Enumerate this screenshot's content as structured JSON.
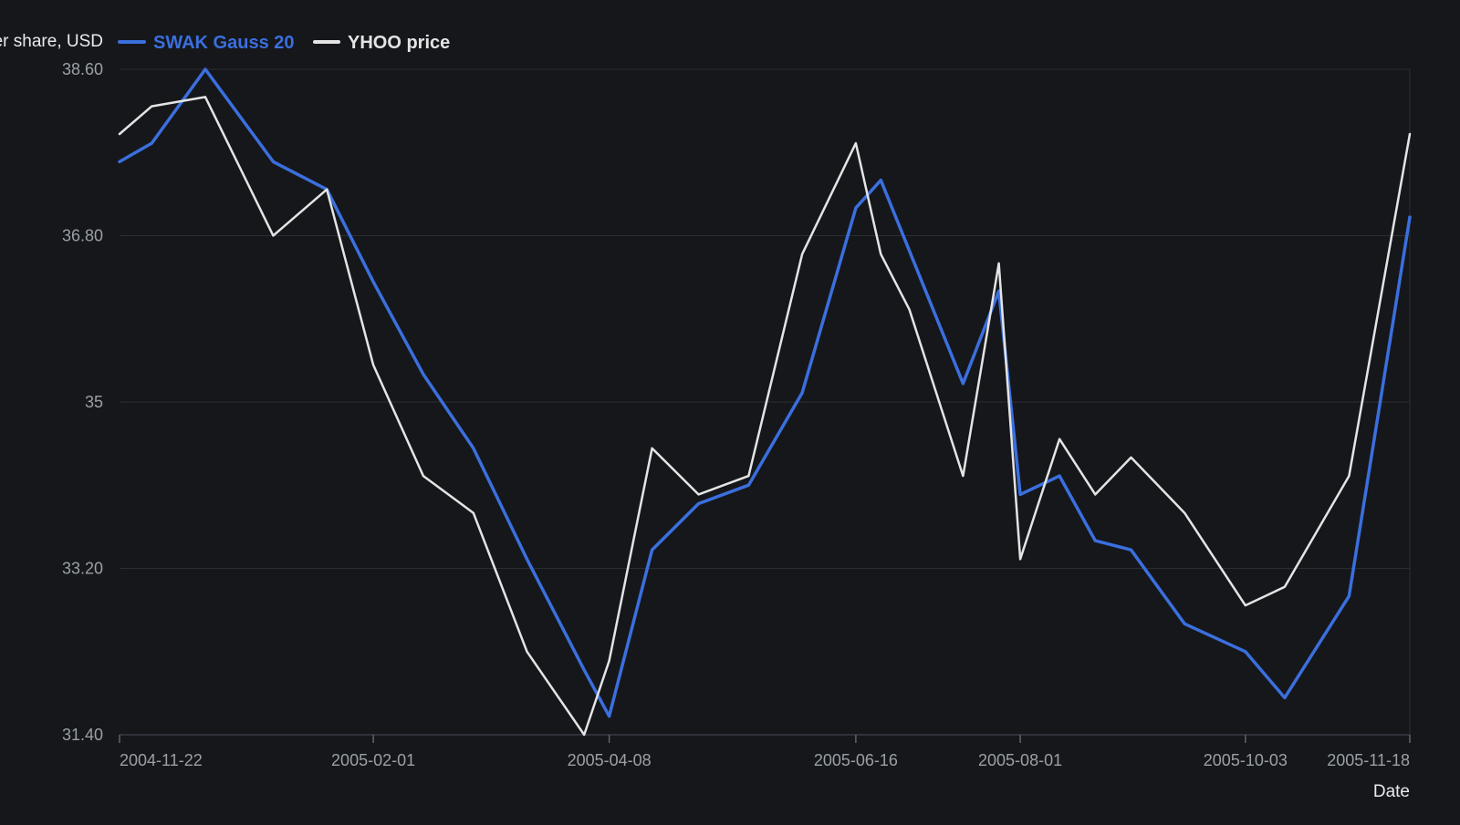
{
  "chart_data": {
    "type": "line",
    "title": "",
    "ylabel": "Price per share, USD",
    "xlabel": "Date",
    "ylim": [
      31.4,
      38.6
    ],
    "y_ticks": [
      31.4,
      33.2,
      35,
      36.8,
      38.6
    ],
    "y_tick_labels": [
      "31.40",
      "33.20",
      "35",
      "36.80",
      "38.60"
    ],
    "x_range": [
      "2004-11-22",
      "2005-11-18"
    ],
    "x_ticks": [
      "2004-11-22",
      "2005-02-01",
      "2005-04-08",
      "2005-06-16",
      "2005-08-01",
      "2005-10-03",
      "2005-11-18"
    ],
    "grid": true,
    "legend_position": "top-left",
    "colors": {
      "background": "#15171b",
      "grid": "#2a2d33",
      "swak": "#3b6fde",
      "yhoo": "#e4e4e4"
    },
    "series": [
      {
        "name": "SWAK Gauss 20",
        "color": "#3b6fde",
        "points": [
          [
            "2004-11-22",
            37.6
          ],
          [
            "2004-12-01",
            37.8
          ],
          [
            "2004-12-16",
            38.6
          ],
          [
            "2005-01-04",
            37.6
          ],
          [
            "2005-01-19",
            37.3
          ],
          [
            "2005-02-01",
            36.3
          ],
          [
            "2005-02-15",
            35.3
          ],
          [
            "2005-03-01",
            34.5
          ],
          [
            "2005-03-16",
            33.3
          ],
          [
            "2005-04-01",
            32.1
          ],
          [
            "2005-04-08",
            31.6
          ],
          [
            "2005-04-20",
            33.4
          ],
          [
            "2005-05-03",
            33.9
          ],
          [
            "2005-05-17",
            34.1
          ],
          [
            "2005-06-01",
            35.1
          ],
          [
            "2005-06-16",
            37.1
          ],
          [
            "2005-06-23",
            37.4
          ],
          [
            "2005-07-16",
            35.2
          ],
          [
            "2005-07-26",
            36.2
          ],
          [
            "2005-08-01",
            34.0
          ],
          [
            "2005-08-12",
            34.2
          ],
          [
            "2005-08-22",
            33.5
          ],
          [
            "2005-09-01",
            33.4
          ],
          [
            "2005-09-16",
            32.6
          ],
          [
            "2005-10-03",
            32.3
          ],
          [
            "2005-10-14",
            31.8
          ],
          [
            "2005-11-01",
            32.9
          ],
          [
            "2005-11-18",
            37.0
          ]
        ]
      },
      {
        "name": "YHOO price",
        "color": "#e4e4e4",
        "points": [
          [
            "2004-11-22",
            37.9
          ],
          [
            "2004-12-01",
            38.2
          ],
          [
            "2004-12-16",
            38.3
          ],
          [
            "2005-01-04",
            36.8
          ],
          [
            "2005-01-19",
            37.3
          ],
          [
            "2005-02-01",
            35.4
          ],
          [
            "2005-02-15",
            34.2
          ],
          [
            "2005-03-01",
            33.8
          ],
          [
            "2005-03-16",
            32.3
          ],
          [
            "2005-04-01",
            31.4
          ],
          [
            "2005-04-08",
            32.2
          ],
          [
            "2005-04-20",
            34.5
          ],
          [
            "2005-05-03",
            34.0
          ],
          [
            "2005-05-17",
            34.2
          ],
          [
            "2005-06-01",
            36.6
          ],
          [
            "2005-06-16",
            37.8
          ],
          [
            "2005-06-23",
            36.6
          ],
          [
            "2005-07-01",
            36.0
          ],
          [
            "2005-07-16",
            34.2
          ],
          [
            "2005-07-26",
            36.5
          ],
          [
            "2005-08-01",
            33.3
          ],
          [
            "2005-08-12",
            34.6
          ],
          [
            "2005-08-22",
            34.0
          ],
          [
            "2005-09-01",
            34.4
          ],
          [
            "2005-09-16",
            33.8
          ],
          [
            "2005-10-03",
            32.8
          ],
          [
            "2005-10-14",
            33.0
          ],
          [
            "2005-11-01",
            34.2
          ],
          [
            "2005-11-18",
            37.9
          ]
        ]
      }
    ]
  }
}
